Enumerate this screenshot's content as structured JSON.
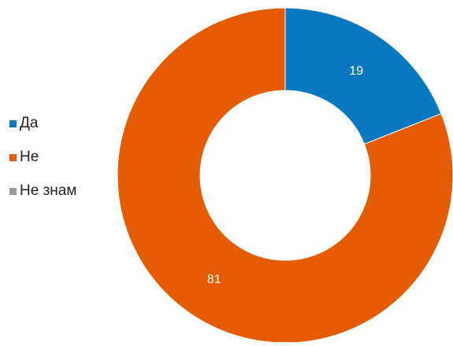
{
  "chart_data": {
    "type": "pie",
    "variant": "donut",
    "title": "",
    "categories": [
      "Да",
      "Не",
      "Не знам"
    ],
    "values": [
      19,
      81,
      0
    ],
    "colors": [
      "#0a78c0",
      "#e55b00",
      "#999999"
    ],
    "legend_position": "left",
    "data_labels": [
      "19",
      "81",
      ""
    ]
  }
}
